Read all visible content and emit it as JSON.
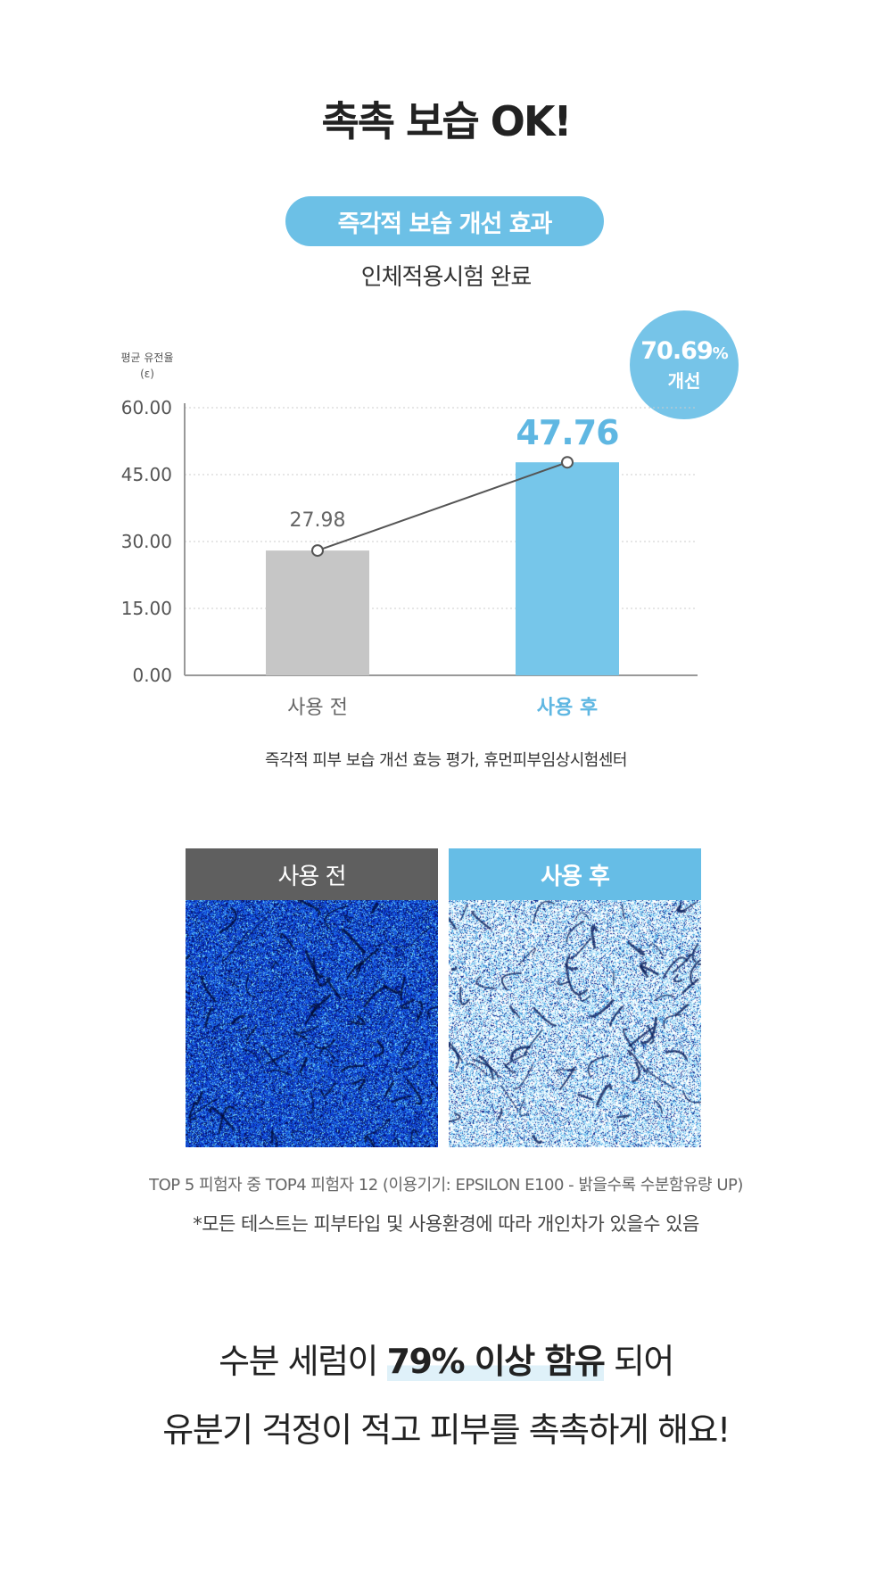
{
  "title": "촉촉 보습 OK!",
  "pill": "즉각적 보습 개선 효과",
  "subtitle": "인체적용시험 완료",
  "badge": {
    "value": "70.69",
    "unit": "%",
    "label": "개선"
  },
  "chart_data": {
    "type": "bar",
    "ylabel_line1": "평균 유전율",
    "ylabel_line2": "(ε)",
    "categories": [
      "사용 전",
      "사용 후"
    ],
    "values": [
      27.98,
      47.76
    ],
    "value_labels": [
      "27.98",
      "47.76"
    ],
    "yticks": [
      "0.00",
      "15.00",
      "30.00",
      "45.00",
      "60.00"
    ],
    "ylim": [
      0,
      60
    ],
    "grid": true,
    "line_overlay": true,
    "colors": [
      "#c6c6c6",
      "#76c6ea"
    ],
    "label_colors": [
      "#666666",
      "#5fb7e2"
    ]
  },
  "source": "즉각적 피부 보습 개선 효능 평가, 휴먼피부임상시험센터",
  "photos": [
    {
      "label": "사용 전",
      "header_color": "#5f5f5f"
    },
    {
      "label": "사용 후",
      "header_color": "#66bde6"
    }
  ],
  "note1": "TOP 5 피험자 중 TOP4 피험자 12 (이용기기: EPSILON E100 - 밝을수록 수분함유량 UP)",
  "note2": "*모든 테스트는 피부타입 및 사용환경에 따라 개인차가 있을수 있음",
  "bottom": {
    "line1_pre": "수분 세럼이 ",
    "line1_hl": "79% 이상 함유",
    "line1_post": " 되어",
    "line2": "유분기 걱정이 적고 피부를 촉촉하게 해요!"
  }
}
